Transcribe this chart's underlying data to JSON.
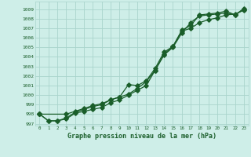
{
  "title": "Graphe pression niveau de la mer (hPa)",
  "bg_color": "#ceeee8",
  "grid_color": "#aad4cc",
  "line_color": "#1a5e2a",
  "xlim": [
    -0.5,
    23.5
  ],
  "ylim": [
    996.8,
    1009.8
  ],
  "x_ticks": [
    0,
    1,
    2,
    3,
    4,
    5,
    6,
    7,
    8,
    9,
    10,
    11,
    12,
    13,
    14,
    15,
    16,
    17,
    18,
    19,
    20,
    21,
    22,
    23
  ],
  "yticks": [
    997,
    998,
    999,
    1000,
    1001,
    1002,
    1003,
    1004,
    1005,
    1006,
    1007,
    1008,
    1009
  ],
  "line1_x": [
    0,
    1,
    2,
    3,
    4,
    5,
    6,
    7,
    8,
    9,
    10,
    11,
    12,
    13,
    14,
    15,
    16,
    17,
    18,
    19,
    20,
    21,
    22,
    23
  ],
  "line1_y": [
    998.0,
    997.3,
    997.3,
    997.5,
    998.1,
    998.3,
    998.5,
    998.7,
    999.2,
    999.5,
    1000.0,
    1000.5,
    1001.0,
    1002.6,
    1004.2,
    1005.0,
    1006.5,
    1007.6,
    1008.3,
    1008.4,
    1008.5,
    1008.6,
    1008.4,
    1009.0
  ],
  "line2_x": [
    0,
    1,
    2,
    3,
    4,
    5,
    6,
    7,
    8,
    9,
    10,
    11,
    12,
    13,
    14,
    15,
    16,
    17,
    18,
    19,
    20,
    21,
    22,
    23
  ],
  "line2_y": [
    998.0,
    997.3,
    997.3,
    997.6,
    998.2,
    998.5,
    998.8,
    999.0,
    999.5,
    999.8,
    1001.1,
    1001.0,
    1001.5,
    1002.8,
    1004.5,
    1005.1,
    1006.8,
    1007.3,
    1008.4,
    1008.5,
    1008.6,
    1008.8,
    1008.4,
    1009.1
  ],
  "line3_x": [
    0,
    3,
    4,
    5,
    6,
    7,
    8,
    9,
    10,
    11,
    12,
    13,
    14,
    15,
    16,
    17,
    18,
    19,
    20,
    21,
    22,
    23
  ],
  "line3_y": [
    998.0,
    998.0,
    998.3,
    998.6,
    998.9,
    999.1,
    999.5,
    999.8,
    1000.1,
    1000.7,
    1001.4,
    1002.6,
    1004.3,
    1005.1,
    1006.7,
    1007.0,
    1007.6,
    1007.9,
    1008.1,
    1008.4,
    1008.5,
    1008.9
  ]
}
